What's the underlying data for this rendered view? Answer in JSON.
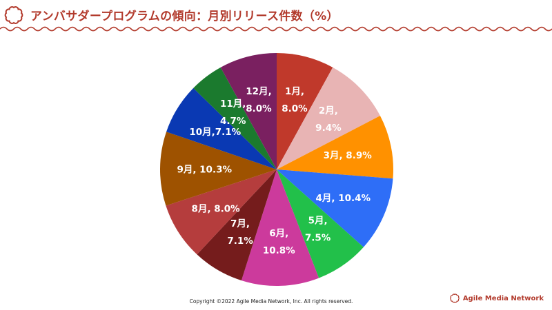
{
  "header": {
    "title": "アンバサダープログラムの傾向：月別リリース件数（%）"
  },
  "footer": {
    "copyright": "Copyright ©2022 Agile Media Network, Inc. All rights reserved.",
    "brand": "Agile Media Network"
  },
  "colors": {
    "brand": "#b23a2c"
  },
  "chart_data": {
    "type": "pie",
    "title": "アンバサダープログラムの傾向：月別リリース件数（%）",
    "start": "12 o'clock, clockwise",
    "slices": [
      {
        "name": "1月",
        "value": 8.0,
        "label": [
          "1月,",
          "8.0%"
        ],
        "color": "#c0392b"
      },
      {
        "name": "2月",
        "value": 9.4,
        "label": [
          "2月,",
          "9.4%"
        ],
        "color": "#e8b4b4"
      },
      {
        "name": "3月",
        "value": 8.9,
        "label": [
          "3月, 8.9%"
        ],
        "color": "#ff9100"
      },
      {
        "name": "4月",
        "value": 10.4,
        "label": [
          "4月, 10.4%"
        ],
        "color": "#2e6ef7"
      },
      {
        "name": "5月",
        "value": 7.5,
        "label": [
          "5月,",
          "7.5%"
        ],
        "color": "#22c04a"
      },
      {
        "name": "6月",
        "value": 10.8,
        "label": [
          "6月,",
          "10.8%"
        ],
        "color": "#cc3a9c"
      },
      {
        "name": "7月",
        "value": 7.1,
        "label": [
          "7月,",
          "7.1%"
        ],
        "color": "#751c1c"
      },
      {
        "name": "8月",
        "value": 8.0,
        "label": [
          "8月, 8.0%"
        ],
        "color": "#b53d3d"
      },
      {
        "name": "9月",
        "value": 10.3,
        "label": [
          "9月, 10.3%"
        ],
        "color": "#9e5200"
      },
      {
        "name": "10月",
        "value": 7.1,
        "label": [
          "10月,7.1%"
        ],
        "color": "#0a39b3"
      },
      {
        "name": "11月",
        "value": 4.7,
        "label": [
          "11月,",
          "4.7%"
        ],
        "color": "#1b7a2e"
      },
      {
        "name": "12月",
        "value": 8.0,
        "label": [
          "12月,",
          "8.0%"
        ],
        "color": "#7a2060"
      }
    ]
  }
}
